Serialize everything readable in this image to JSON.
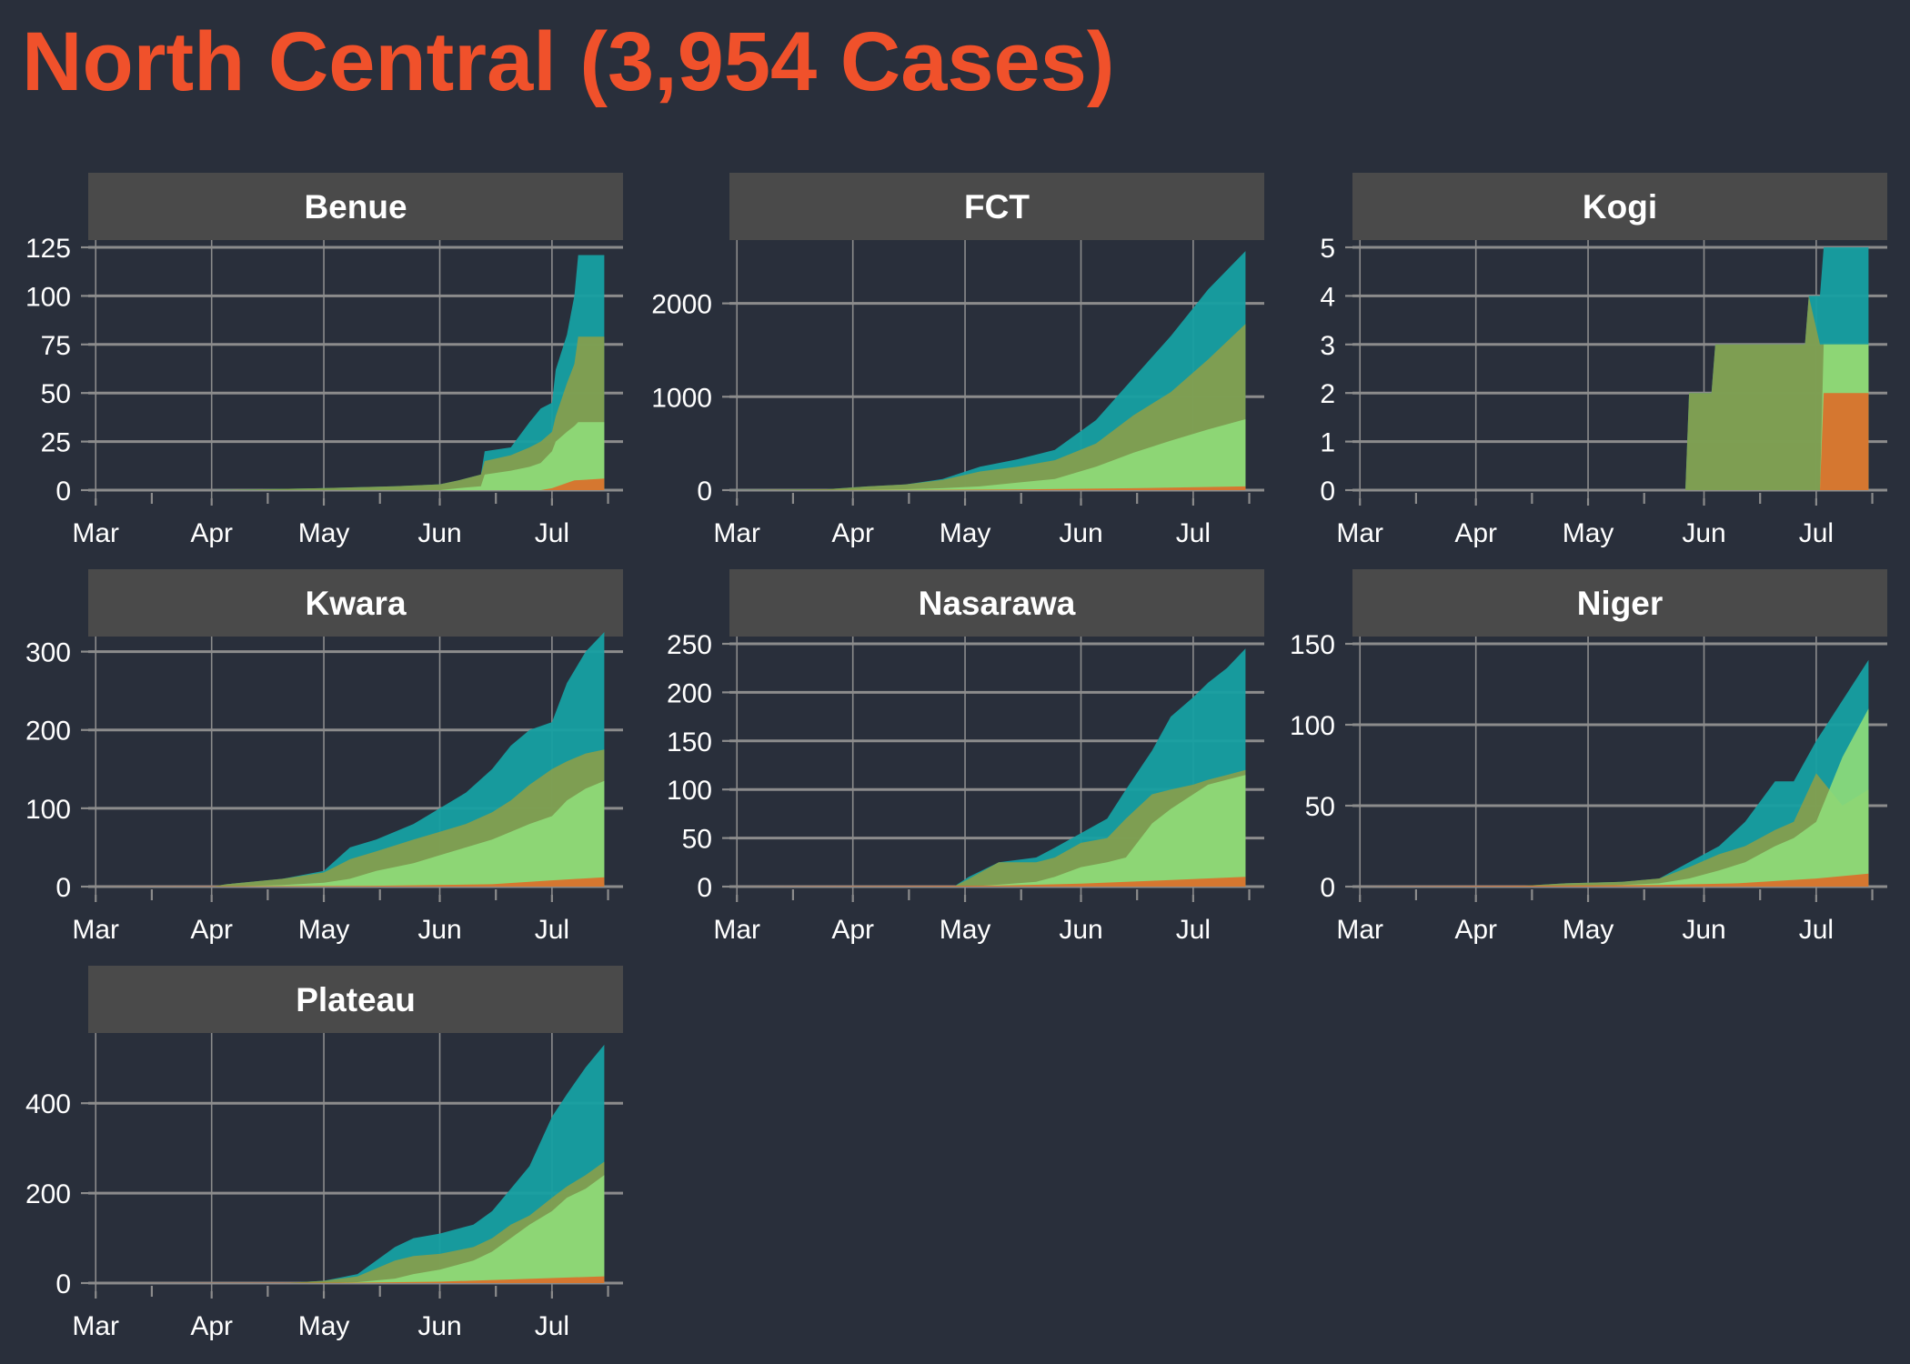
{
  "title": "North Central (3,954 Cases)",
  "colors": {
    "background": "#292f3b",
    "title": "#f0512b",
    "strip": "#4a4a4a",
    "grid": "#8c8c8c",
    "series_confirmed": "#16a0a2",
    "series_olive": "#8a9f4a",
    "series_lightgreen": "#8fdb79",
    "series_orange": "#dd6d29"
  },
  "chart_data": [
    {
      "type": "area",
      "title": "Benue",
      "x_ticks": [
        "Mar",
        "Apr",
        "May",
        "Jun",
        "Jul"
      ],
      "y_ticks": [
        0,
        25,
        50,
        75,
        100,
        125
      ],
      "ylim": [
        0,
        125
      ],
      "grid": true,
      "series": [
        {
          "color": "#16a0a2",
          "x": [
            "2020-02-28",
            "2020-04-01",
            "2020-04-30",
            "2020-05-20",
            "2020-06-01",
            "2020-06-06",
            "2020-06-12",
            "2020-06-13",
            "2020-06-20",
            "2020-06-25",
            "2020-06-28",
            "2020-07-01",
            "2020-07-02",
            "2020-07-05",
            "2020-07-07",
            "2020-07-08",
            "2020-07-15"
          ],
          "y": [
            0,
            0,
            1,
            2,
            3,
            5,
            8,
            20,
            22,
            35,
            42,
            45,
            62,
            80,
            100,
            121,
            121
          ]
        },
        {
          "color": "#8a9f4a",
          "x": [
            "2020-02-28",
            "2020-04-01",
            "2020-04-30",
            "2020-05-20",
            "2020-06-01",
            "2020-06-06",
            "2020-06-12",
            "2020-06-13",
            "2020-06-20",
            "2020-06-25",
            "2020-06-28",
            "2020-07-01",
            "2020-07-02",
            "2020-07-05",
            "2020-07-07",
            "2020-07-08",
            "2020-07-15"
          ],
          "y": [
            0,
            0,
            1,
            2,
            3,
            5,
            8,
            15,
            18,
            22,
            25,
            30,
            38,
            55,
            65,
            79,
            79
          ]
        },
        {
          "color": "#8fdb79",
          "x": [
            "2020-02-28",
            "2020-04-01",
            "2020-04-30",
            "2020-05-20",
            "2020-06-01",
            "2020-06-06",
            "2020-06-12",
            "2020-06-13",
            "2020-06-20",
            "2020-06-25",
            "2020-06-28",
            "2020-07-01",
            "2020-07-02",
            "2020-07-05",
            "2020-07-07",
            "2020-07-08",
            "2020-07-15"
          ],
          "y": [
            0,
            0,
            0,
            0,
            0,
            1,
            2,
            8,
            10,
            12,
            14,
            20,
            25,
            30,
            33,
            35,
            35
          ]
        },
        {
          "color": "#dd6d29",
          "x": [
            "2020-02-28",
            "2020-06-28",
            "2020-07-01",
            "2020-07-07",
            "2020-07-15"
          ],
          "y": [
            0,
            0,
            1,
            5,
            6
          ]
        }
      ]
    },
    {
      "type": "area",
      "title": "FCT",
      "x_ticks": [
        "Mar",
        "Apr",
        "May",
        "Jun",
        "Jul"
      ],
      "y_ticks": [
        0,
        1000,
        2000
      ],
      "ylim": [
        0,
        2600
      ],
      "grid": true,
      "series": [
        {
          "color": "#16a0a2",
          "x": [
            "2020-02-28",
            "2020-03-25",
            "2020-04-05",
            "2020-04-15",
            "2020-04-25",
            "2020-05-05",
            "2020-05-15",
            "2020-05-25",
            "2020-06-05",
            "2020-06-15",
            "2020-06-25",
            "2020-07-05",
            "2020-07-15"
          ],
          "y": [
            0,
            10,
            40,
            60,
            120,
            250,
            330,
            430,
            750,
            1200,
            1650,
            2150,
            2560
          ]
        },
        {
          "color": "#8a9f4a",
          "x": [
            "2020-02-28",
            "2020-03-25",
            "2020-04-05",
            "2020-04-15",
            "2020-04-25",
            "2020-05-05",
            "2020-05-15",
            "2020-05-25",
            "2020-06-05",
            "2020-06-15",
            "2020-06-25",
            "2020-07-05",
            "2020-07-15"
          ],
          "y": [
            0,
            10,
            40,
            60,
            110,
            200,
            250,
            320,
            500,
            800,
            1050,
            1400,
            1780
          ]
        },
        {
          "color": "#8fdb79",
          "x": [
            "2020-02-28",
            "2020-03-25",
            "2020-04-05",
            "2020-04-15",
            "2020-04-25",
            "2020-05-05",
            "2020-05-15",
            "2020-05-25",
            "2020-06-05",
            "2020-06-15",
            "2020-06-25",
            "2020-07-05",
            "2020-07-15"
          ],
          "y": [
            0,
            0,
            5,
            10,
            20,
            40,
            80,
            120,
            250,
            400,
            530,
            650,
            760
          ]
        },
        {
          "color": "#dd6d29",
          "x": [
            "2020-02-28",
            "2020-04-15",
            "2020-05-15",
            "2020-06-15",
            "2020-07-15"
          ],
          "y": [
            0,
            2,
            8,
            20,
            40
          ]
        }
      ]
    },
    {
      "type": "area",
      "title": "Kogi",
      "x_ticks": [
        "Mar",
        "Apr",
        "May",
        "Jun",
        "Jul"
      ],
      "y_ticks": [
        0,
        1,
        2,
        3,
        4,
        5
      ],
      "ylim": [
        0,
        5
      ],
      "grid": true,
      "series": [
        {
          "color": "#16a0a2",
          "x": [
            "2020-02-28",
            "2020-05-27",
            "2020-05-28",
            "2020-06-03",
            "2020-06-04",
            "2020-06-28",
            "2020-06-29",
            "2020-07-02",
            "2020-07-03",
            "2020-07-15"
          ],
          "y": [
            0,
            0,
            2,
            2,
            3,
            3,
            4,
            4,
            5,
            5
          ]
        },
        {
          "color": "#8a9f4a",
          "x": [
            "2020-02-28",
            "2020-05-27",
            "2020-05-28",
            "2020-06-03",
            "2020-06-04",
            "2020-06-28",
            "2020-06-29",
            "2020-07-02",
            "2020-07-03",
            "2020-07-15"
          ],
          "y": [
            0,
            0,
            2,
            2,
            3,
            3,
            4,
            3,
            3,
            3
          ]
        },
        {
          "color": "#8fdb79",
          "x": [
            "2020-02-28",
            "2020-07-02",
            "2020-07-03",
            "2020-07-15"
          ],
          "y": [
            0,
            0,
            3,
            3
          ]
        },
        {
          "color": "#dd6d29",
          "x": [
            "2020-02-28",
            "2020-07-02",
            "2020-07-03",
            "2020-07-15"
          ],
          "y": [
            0,
            0,
            2,
            2
          ]
        }
      ]
    },
    {
      "type": "area",
      "title": "Kwara",
      "x_ticks": [
        "Mar",
        "Apr",
        "May",
        "Jun",
        "Jul"
      ],
      "y_ticks": [
        0,
        100,
        200,
        300
      ],
      "ylim": [
        0,
        310
      ],
      "grid": true,
      "series": [
        {
          "color": "#16a0a2",
          "x": [
            "2020-02-28",
            "2020-04-01",
            "2020-04-05",
            "2020-04-20",
            "2020-05-01",
            "2020-05-08",
            "2020-05-15",
            "2020-05-25",
            "2020-06-01",
            "2020-06-08",
            "2020-06-15",
            "2020-06-20",
            "2020-06-25",
            "2020-07-01",
            "2020-07-05",
            "2020-07-10",
            "2020-07-15"
          ],
          "y": [
            0,
            0,
            3,
            10,
            20,
            50,
            60,
            80,
            100,
            120,
            150,
            180,
            200,
            210,
            260,
            300,
            325
          ]
        },
        {
          "color": "#8a9f4a",
          "x": [
            "2020-02-28",
            "2020-04-01",
            "2020-04-05",
            "2020-04-20",
            "2020-05-01",
            "2020-05-08",
            "2020-05-15",
            "2020-05-25",
            "2020-06-01",
            "2020-06-08",
            "2020-06-15",
            "2020-06-20",
            "2020-06-25",
            "2020-07-01",
            "2020-07-05",
            "2020-07-10",
            "2020-07-15"
          ],
          "y": [
            0,
            0,
            3,
            10,
            18,
            35,
            45,
            60,
            70,
            80,
            95,
            110,
            130,
            150,
            160,
            170,
            175
          ]
        },
        {
          "color": "#8fdb79",
          "x": [
            "2020-02-28",
            "2020-04-01",
            "2020-04-05",
            "2020-04-20",
            "2020-05-01",
            "2020-05-08",
            "2020-05-15",
            "2020-05-25",
            "2020-06-01",
            "2020-06-08",
            "2020-06-15",
            "2020-06-20",
            "2020-06-25",
            "2020-07-01",
            "2020-07-05",
            "2020-07-10",
            "2020-07-15"
          ],
          "y": [
            0,
            0,
            0,
            2,
            5,
            10,
            20,
            30,
            40,
            50,
            60,
            70,
            80,
            90,
            110,
            125,
            135
          ]
        },
        {
          "color": "#dd6d29",
          "x": [
            "2020-02-28",
            "2020-05-15",
            "2020-06-15",
            "2020-07-01",
            "2020-07-15"
          ],
          "y": [
            0,
            1,
            3,
            8,
            12
          ]
        }
      ]
    },
    {
      "type": "area",
      "title": "Nasarawa",
      "x_ticks": [
        "Mar",
        "Apr",
        "May",
        "Jun",
        "Jul"
      ],
      "y_ticks": [
        0,
        50,
        100,
        150,
        200,
        250
      ],
      "ylim": [
        0,
        250
      ],
      "grid": true,
      "series": [
        {
          "color": "#16a0a2",
          "x": [
            "2020-02-28",
            "2020-04-28",
            "2020-05-02",
            "2020-05-10",
            "2020-05-20",
            "2020-05-25",
            "2020-06-01",
            "2020-06-08",
            "2020-06-13",
            "2020-06-20",
            "2020-06-25",
            "2020-07-01",
            "2020-07-05",
            "2020-07-10",
            "2020-07-15"
          ],
          "y": [
            0,
            0,
            10,
            25,
            30,
            40,
            55,
            70,
            100,
            140,
            175,
            195,
            210,
            225,
            245
          ]
        },
        {
          "color": "#8a9f4a",
          "x": [
            "2020-02-28",
            "2020-04-28",
            "2020-05-02",
            "2020-05-10",
            "2020-05-20",
            "2020-05-25",
            "2020-06-01",
            "2020-06-08",
            "2020-06-13",
            "2020-06-20",
            "2020-06-25",
            "2020-07-01",
            "2020-07-05",
            "2020-07-10",
            "2020-07-15"
          ],
          "y": [
            0,
            0,
            8,
            25,
            25,
            30,
            45,
            50,
            70,
            95,
            100,
            105,
            110,
            115,
            120
          ]
        },
        {
          "color": "#8fdb79",
          "x": [
            "2020-02-28",
            "2020-04-28",
            "2020-05-02",
            "2020-05-10",
            "2020-05-20",
            "2020-05-25",
            "2020-06-01",
            "2020-06-08",
            "2020-06-13",
            "2020-06-20",
            "2020-06-25",
            "2020-07-01",
            "2020-07-05",
            "2020-07-10",
            "2020-07-15"
          ],
          "y": [
            0,
            0,
            0,
            2,
            5,
            10,
            20,
            25,
            30,
            65,
            80,
            95,
            105,
            110,
            115
          ]
        },
        {
          "color": "#dd6d29",
          "x": [
            "2020-02-28",
            "2020-05-10",
            "2020-06-01",
            "2020-06-20",
            "2020-07-15"
          ],
          "y": [
            0,
            1,
            3,
            6,
            10
          ]
        }
      ]
    },
    {
      "type": "area",
      "title": "Niger",
      "x_ticks": [
        "Mar",
        "Apr",
        "May",
        "Jun",
        "Jul"
      ],
      "y_ticks": [
        0,
        50,
        100,
        150
      ],
      "ylim": [
        0,
        150
      ],
      "grid": true,
      "series": [
        {
          "color": "#16a0a2",
          "x": [
            "2020-02-28",
            "2020-04-10",
            "2020-04-25",
            "2020-05-10",
            "2020-05-20",
            "2020-05-28",
            "2020-06-05",
            "2020-06-12",
            "2020-06-20",
            "2020-06-25",
            "2020-07-01",
            "2020-07-08",
            "2020-07-15"
          ],
          "y": [
            0,
            0,
            2,
            3,
            5,
            15,
            25,
            40,
            65,
            65,
            90,
            115,
            140
          ]
        },
        {
          "color": "#8a9f4a",
          "x": [
            "2020-02-28",
            "2020-04-10",
            "2020-04-25",
            "2020-05-10",
            "2020-05-20",
            "2020-05-28",
            "2020-06-05",
            "2020-06-12",
            "2020-06-20",
            "2020-06-25",
            "2020-07-01",
            "2020-07-08",
            "2020-07-15"
          ],
          "y": [
            0,
            0,
            2,
            3,
            5,
            12,
            20,
            25,
            35,
            40,
            70,
            50,
            60
          ]
        },
        {
          "color": "#8fdb79",
          "x": [
            "2020-02-28",
            "2020-04-10",
            "2020-04-25",
            "2020-05-10",
            "2020-05-20",
            "2020-05-28",
            "2020-06-05",
            "2020-06-12",
            "2020-06-20",
            "2020-06-25",
            "2020-07-01",
            "2020-07-08",
            "2020-07-15"
          ],
          "y": [
            0,
            0,
            0,
            1,
            2,
            5,
            10,
            15,
            25,
            30,
            40,
            80,
            110
          ]
        },
        {
          "color": "#dd6d29",
          "x": [
            "2020-02-28",
            "2020-05-20",
            "2020-06-10",
            "2020-07-01",
            "2020-07-15"
          ],
          "y": [
            0,
            1,
            2,
            5,
            8
          ]
        }
      ]
    },
    {
      "type": "area",
      "title": "Plateau",
      "x_ticks": [
        "Mar",
        "Apr",
        "May",
        "Jun",
        "Jul"
      ],
      "y_ticks": [
        0,
        200,
        400
      ],
      "ylim": [
        0,
        540
      ],
      "grid": true,
      "series": [
        {
          "color": "#16a0a2",
          "x": [
            "2020-02-28",
            "2020-04-20",
            "2020-05-01",
            "2020-05-10",
            "2020-05-20",
            "2020-05-25",
            "2020-06-01",
            "2020-06-10",
            "2020-06-15",
            "2020-06-20",
            "2020-06-25",
            "2020-07-01",
            "2020-07-05",
            "2020-07-10",
            "2020-07-15"
          ],
          "y": [
            0,
            0,
            5,
            20,
            80,
            100,
            110,
            130,
            160,
            210,
            260,
            370,
            420,
            480,
            530
          ]
        },
        {
          "color": "#8a9f4a",
          "x": [
            "2020-02-28",
            "2020-04-20",
            "2020-05-01",
            "2020-05-10",
            "2020-05-20",
            "2020-05-25",
            "2020-06-01",
            "2020-06-10",
            "2020-06-15",
            "2020-06-20",
            "2020-06-25",
            "2020-07-01",
            "2020-07-05",
            "2020-07-10",
            "2020-07-15"
          ],
          "y": [
            0,
            0,
            5,
            15,
            50,
            60,
            65,
            80,
            100,
            130,
            150,
            190,
            215,
            240,
            270
          ]
        },
        {
          "color": "#8fdb79",
          "x": [
            "2020-02-28",
            "2020-04-20",
            "2020-05-01",
            "2020-05-10",
            "2020-05-20",
            "2020-05-25",
            "2020-06-01",
            "2020-06-10",
            "2020-06-15",
            "2020-06-20",
            "2020-06-25",
            "2020-07-01",
            "2020-07-05",
            "2020-07-10",
            "2020-07-15"
          ],
          "y": [
            0,
            0,
            0,
            2,
            10,
            20,
            30,
            50,
            70,
            100,
            130,
            160,
            190,
            210,
            240
          ]
        },
        {
          "color": "#dd6d29",
          "x": [
            "2020-02-28",
            "2020-05-10",
            "2020-06-01",
            "2020-06-20",
            "2020-07-15"
          ],
          "y": [
            0,
            1,
            3,
            8,
            15
          ]
        }
      ]
    }
  ]
}
